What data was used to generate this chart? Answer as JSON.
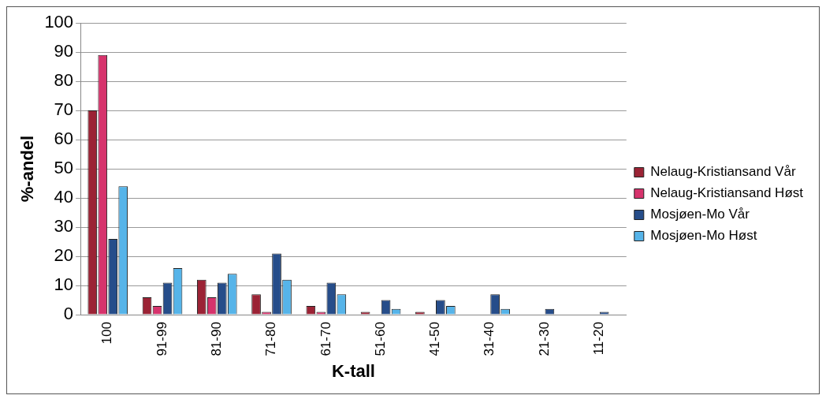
{
  "chart_data": {
    "type": "bar",
    "xlabel": "K-tall",
    "ylabel": "%-andel",
    "categories": [
      "100",
      "91-99",
      "81-90",
      "71-80",
      "61-70",
      "51-60",
      "41-50",
      "31-40",
      "21-30",
      "11-20"
    ],
    "series": [
      {
        "name": "Nelaug-Kristiansand Vår",
        "color": "#9b2335",
        "values": [
          70,
          6,
          12,
          7,
          3,
          1,
          1,
          0,
          0,
          0
        ]
      },
      {
        "name": "Nelaug-Kristiansand Høst",
        "color": "#d6336c",
        "values": [
          89,
          3,
          6,
          1,
          1,
          0,
          0,
          0,
          0,
          0
        ]
      },
      {
        "name": "Mosjøen-Mo Vår",
        "color": "#264d8a",
        "values": [
          26,
          11,
          11,
          21,
          11,
          5,
          5,
          7,
          2,
          1
        ]
      },
      {
        "name": "Mosjøen-Mo Høst",
        "color": "#56b4e9",
        "values": [
          44,
          16,
          14,
          12,
          7,
          2,
          3,
          2,
          0,
          0
        ]
      }
    ],
    "ylim": [
      0,
      100
    ],
    "yticks": [
      0,
      10,
      20,
      30,
      40,
      50,
      60,
      70,
      80,
      90,
      100
    ],
    "grid": "y",
    "legend": "right"
  }
}
